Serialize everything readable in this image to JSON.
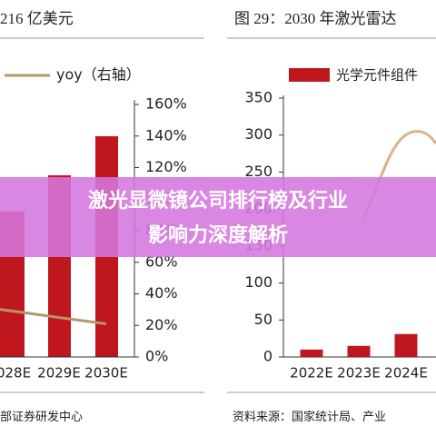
{
  "chart_data": [
    {
      "type": "line",
      "title": "216 亿美元",
      "categories": [
        "028E",
        "2029E",
        "2030E"
      ],
      "series": [
        {
          "name": "yoy（右轴）",
          "color": "#b8956a",
          "values": [
            29,
            25,
            21
          ],
          "axis": "y2"
        }
      ],
      "y2lim": [
        0,
        160
      ],
      "y2ticks": [
        {
          "value": 0,
          "label": "0%"
        },
        {
          "value": 20,
          "label": "20%"
        },
        {
          "value": 40,
          "label": "40%"
        },
        {
          "value": 60,
          "label": "60%"
        },
        {
          "value": 80,
          "label": "80%"
        },
        {
          "value": 100,
          "label": "100%"
        },
        {
          "value": 120,
          "label": "120%"
        },
        {
          "value": 140,
          "label": "140%"
        },
        {
          "value": 160,
          "label": "160%"
        }
      ],
      "source": "部证券研发中心"
    },
    {
      "type": "bar",
      "title": "图 29：2030 年激光雷达",
      "categories": [
        "2022E",
        "2023E",
        "2024E"
      ],
      "series": [
        {
          "name": "光学元件组件",
          "color": "#c0171f",
          "values": [
            10,
            15,
            31
          ]
        }
      ],
      "ylim": [
        0,
        350
      ],
      "yticks": [
        0,
        50,
        100,
        150,
        200,
        250,
        300,
        350
      ],
      "source": "资料来源：国家统计局、产业"
    }
  ],
  "overlay_title": [
    "激光显微镜公司排行榜及行业",
    "影响力深度解析"
  ]
}
